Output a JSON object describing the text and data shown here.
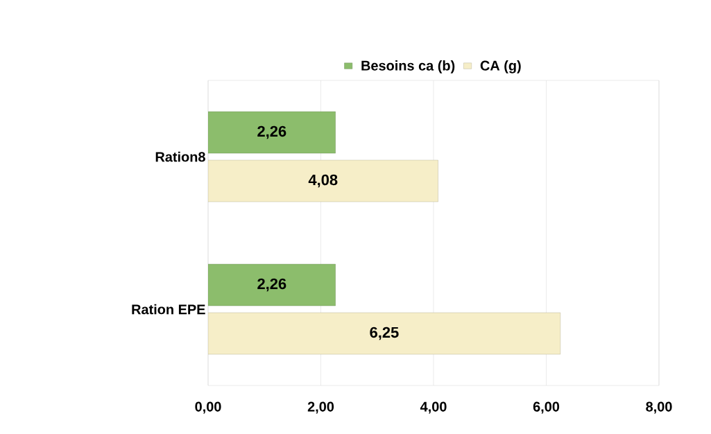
{
  "chart_data": {
    "type": "bar",
    "orientation": "horizontal",
    "categories": [
      "Ration8",
      "Ration EPE"
    ],
    "series": [
      {
        "name": "Besoins ca (b)",
        "color": "#8cbd6c",
        "values": [
          2.26,
          2.26
        ],
        "value_labels": [
          "2,26",
          "2,26"
        ]
      },
      {
        "name": "CA (g)",
        "color": "#f6eec8",
        "values": [
          4.08,
          6.25
        ],
        "value_labels": [
          "4,08",
          "6,25"
        ]
      }
    ],
    "xlim": [
      0,
      8
    ],
    "xticks": [
      {
        "value": 0,
        "label": "0,00"
      },
      {
        "value": 2,
        "label": "2,00"
      },
      {
        "value": 4,
        "label": "4,00"
      },
      {
        "value": 6,
        "label": "6,00"
      },
      {
        "value": 8,
        "label": "8,00"
      }
    ],
    "grid": "x",
    "legend": "top"
  }
}
